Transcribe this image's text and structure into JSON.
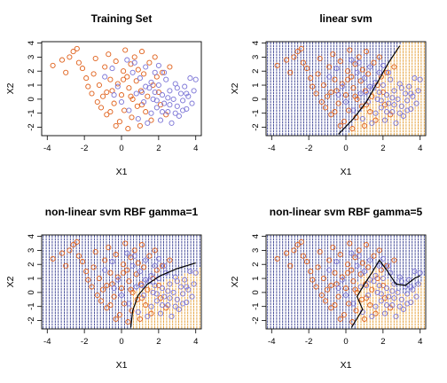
{
  "colors": {
    "class_a": "#e0601a",
    "class_b": "#7b74d6",
    "grid_a": "#e39a2e",
    "grid_b": "#333a8e",
    "boundary": "#000000"
  },
  "chart_data": [
    {
      "type": "scatter",
      "title": "Training Set",
      "xlabel": "X1",
      "ylabel": "X2",
      "xlim": [
        -4.3,
        4.3
      ],
      "ylim": [
        -2.6,
        4.1
      ],
      "xticks": [
        -4,
        -2,
        0,
        2,
        4
      ],
      "yticks": [
        -2,
        -1,
        0,
        1,
        2,
        3,
        4
      ],
      "background_grid": false,
      "boundary": []
    },
    {
      "type": "scatter",
      "title": "linear svm",
      "xlabel": "X1",
      "ylabel": "X2",
      "xlim": [
        -4.3,
        4.3
      ],
      "ylim": [
        -2.6,
        4.1
      ],
      "xticks": [
        -4,
        -2,
        0,
        2,
        4
      ],
      "yticks": [
        -2,
        -1,
        0,
        1,
        2,
        3,
        4
      ],
      "background_grid": true,
      "boundary": [
        [
          -0.4,
          -2.5
        ],
        [
          0.4,
          -1.4
        ],
        [
          1.1,
          -0.2
        ],
        [
          1.7,
          1.2
        ],
        [
          2.3,
          2.6
        ],
        [
          2.9,
          3.8
        ]
      ]
    },
    {
      "type": "scatter",
      "title": "non-linear svm RBF gamma=1",
      "xlabel": "X1",
      "ylabel": "X2",
      "xlim": [
        -4.3,
        4.3
      ],
      "ylim": [
        -2.6,
        4.1
      ],
      "xticks": [
        -4,
        -2,
        0,
        2,
        4
      ],
      "yticks": [
        -2,
        -1,
        0,
        1,
        2,
        3,
        4
      ],
      "background_grid": true,
      "boundary": [
        [
          0.5,
          -2.5
        ],
        [
          0.6,
          -1.3
        ],
        [
          0.9,
          -0.2
        ],
        [
          1.4,
          0.6
        ],
        [
          2.1,
          1.2
        ],
        [
          3.0,
          1.7
        ],
        [
          4.0,
          2.1
        ]
      ]
    },
    {
      "type": "scatter",
      "title": "non-linear svm RBF gamma=5",
      "xlabel": "X1",
      "ylabel": "X2",
      "xlim": [
        -4.3,
        4.3
      ],
      "ylim": [
        -2.6,
        4.1
      ],
      "xticks": [
        -4,
        -2,
        0,
        2,
        4
      ],
      "yticks": [
        -2,
        -1,
        0,
        1,
        2,
        3,
        4
      ],
      "background_grid": true,
      "boundary": [
        [
          0.3,
          -2.5
        ],
        [
          0.9,
          -1.2
        ],
        [
          0.6,
          -0.3
        ],
        [
          1.0,
          0.6
        ],
        [
          1.4,
          1.4
        ],
        [
          1.8,
          2.3
        ],
        [
          2.2,
          1.6
        ],
        [
          2.7,
          0.6
        ],
        [
          3.2,
          0.5
        ],
        [
          3.7,
          1.0
        ],
        [
          4.0,
          1.2
        ]
      ]
    }
  ],
  "points": {
    "class_a": [
      [
        -3.7,
        2.4
      ],
      [
        -3.2,
        2.8
      ],
      [
        -3.0,
        1.9
      ],
      [
        -2.8,
        3.0
      ],
      [
        -2.6,
        3.4
      ],
      [
        -2.4,
        3.6
      ],
      [
        -2.3,
        2.6
      ],
      [
        -2.1,
        2.2
      ],
      [
        -1.9,
        1.5
      ],
      [
        -1.8,
        0.9
      ],
      [
        -1.6,
        0.4
      ],
      [
        -1.5,
        1.8
      ],
      [
        -1.4,
        2.9
      ],
      [
        -1.2,
        1.0
      ],
      [
        -1.1,
        -0.6
      ],
      [
        -1.0,
        0.2
      ],
      [
        -0.9,
        2.3
      ],
      [
        -0.8,
        -1.1
      ],
      [
        -0.7,
        3.2
      ],
      [
        -0.6,
        1.4
      ],
      [
        -0.5,
        0.6
      ],
      [
        -0.4,
        -0.3
      ],
      [
        -0.3,
        2.7
      ],
      [
        -0.2,
        1.1
      ],
      [
        -0.1,
        -1.6
      ],
      [
        0.0,
        0.3
      ],
      [
        0.1,
        2.0
      ],
      [
        0.15,
        -0.8
      ],
      [
        0.2,
        3.5
      ],
      [
        0.3,
        1.6
      ],
      [
        0.35,
        -2.1
      ],
      [
        0.4,
        0.8
      ],
      [
        0.5,
        2.5
      ],
      [
        0.55,
        -1.3
      ],
      [
        0.6,
        0.0
      ],
      [
        0.7,
        3.0
      ],
      [
        0.8,
        1.3
      ],
      [
        0.85,
        -0.5
      ],
      [
        0.9,
        2.1
      ],
      [
        1.0,
        -1.9
      ],
      [
        1.05,
        0.6
      ],
      [
        1.1,
        3.4
      ],
      [
        1.2,
        1.8
      ],
      [
        1.3,
        -0.9
      ],
      [
        1.4,
        0.2
      ],
      [
        1.5,
        2.6
      ],
      [
        1.6,
        -1.5
      ],
      [
        1.7,
        1.0
      ],
      [
        1.8,
        3.0
      ],
      [
        2.0,
        0.5
      ],
      [
        2.1,
        -0.4
      ],
      [
        2.2,
        1.9
      ],
      [
        2.4,
        -1.1
      ],
      [
        2.6,
        2.3
      ],
      [
        -0.3,
        -1.9
      ],
      [
        -0.6,
        -0.9
      ],
      [
        0.1,
        1.4
      ],
      [
        0.5,
        0.2
      ],
      [
        1.1,
        -0.4
      ],
      [
        1.9,
        1.6
      ],
      [
        -1.3,
        -0.2
      ],
      [
        -0.8,
        0.5
      ]
    ],
    "class_b": [
      [
        -0.9,
        1.6
      ],
      [
        -0.5,
        2.2
      ],
      [
        -0.2,
        0.9
      ],
      [
        0.0,
        -0.2
      ],
      [
        0.3,
        2.8
      ],
      [
        0.6,
        1.9
      ],
      [
        0.8,
        0.4
      ],
      [
        1.0,
        1.5
      ],
      [
        1.2,
        -0.2
      ],
      [
        1.3,
        2.3
      ],
      [
        1.5,
        0.8
      ],
      [
        1.6,
        -1.0
      ],
      [
        1.7,
        0.0
      ],
      [
        1.8,
        1.9
      ],
      [
        1.9,
        -0.6
      ],
      [
        2.0,
        1.0
      ],
      [
        2.1,
        -1.5
      ],
      [
        2.2,
        0.3
      ],
      [
        2.3,
        -0.3
      ],
      [
        2.4,
        1.4
      ],
      [
        2.5,
        -0.9
      ],
      [
        2.6,
        0.6
      ],
      [
        2.7,
        -1.7
      ],
      [
        2.8,
        0.0
      ],
      [
        2.9,
        1.1
      ],
      [
        3.0,
        -0.5
      ],
      [
        3.1,
        -1.2
      ],
      [
        3.2,
        0.4
      ],
      [
        3.3,
        -0.1
      ],
      [
        3.4,
        0.9
      ],
      [
        3.5,
        -0.7
      ],
      [
        3.6,
        0.2
      ],
      [
        3.7,
        1.5
      ],
      [
        3.8,
        -0.3
      ],
      [
        4.0,
        1.4
      ],
      [
        2.0,
        2.4
      ],
      [
        1.4,
        -1.7
      ],
      [
        2.6,
        -0.4
      ],
      [
        3.0,
        0.8
      ],
      [
        1.1,
        0.5
      ],
      [
        0.4,
        -0.8
      ],
      [
        1.8,
        0.5
      ],
      [
        2.3,
        1.9
      ],
      [
        3.5,
        0.4
      ],
      [
        2.9,
        -1.0
      ],
      [
        1.6,
        1.2
      ],
      [
        0.9,
        -1.4
      ],
      [
        -0.4,
        0.3
      ],
      [
        0.7,
        2.6
      ],
      [
        2.2,
        -0.9
      ],
      [
        3.9,
        0.6
      ],
      [
        1.3,
        0.9
      ],
      [
        2.5,
        0.1
      ],
      [
        3.3,
        -0.8
      ],
      [
        1.9,
        -0.1
      ]
    ]
  }
}
